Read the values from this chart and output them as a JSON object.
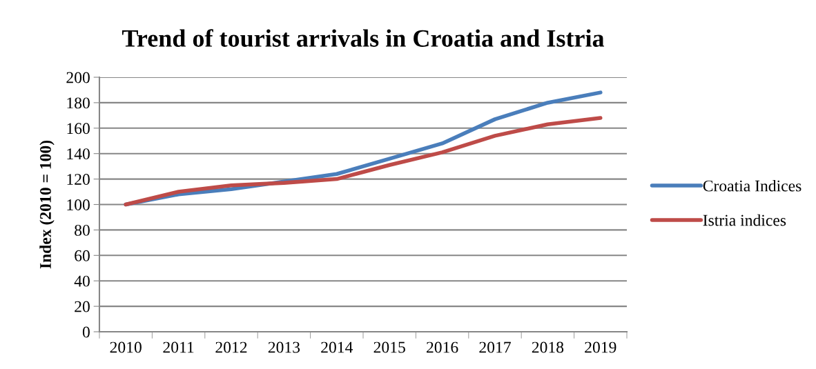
{
  "chart_data": {
    "type": "line",
    "title": "Trend of tourist arrivals in Croatia and Istria",
    "ylabel": "Index (2010 = 100)",
    "categories": [
      "2010",
      "2011",
      "2012",
      "2013",
      "2014",
      "2015",
      "2016",
      "2017",
      "2018",
      "2019"
    ],
    "series": [
      {
        "name": "Croatia Indices",
        "color": "#4a7ebb",
        "values": [
          100,
          108,
          112,
          118,
          124,
          136,
          148,
          167,
          180,
          188
        ]
      },
      {
        "name": "Istria indices",
        "color": "#be4b48",
        "values": [
          100,
          110,
          115,
          117,
          120,
          131,
          141,
          154,
          163,
          168
        ]
      }
    ],
    "ylim": [
      0,
      200
    ],
    "yticks": [
      0,
      20,
      40,
      60,
      80,
      100,
      120,
      140,
      160,
      180,
      200
    ],
    "grid": "y",
    "legend": "right",
    "marker": "none",
    "line_style": "solid"
  }
}
